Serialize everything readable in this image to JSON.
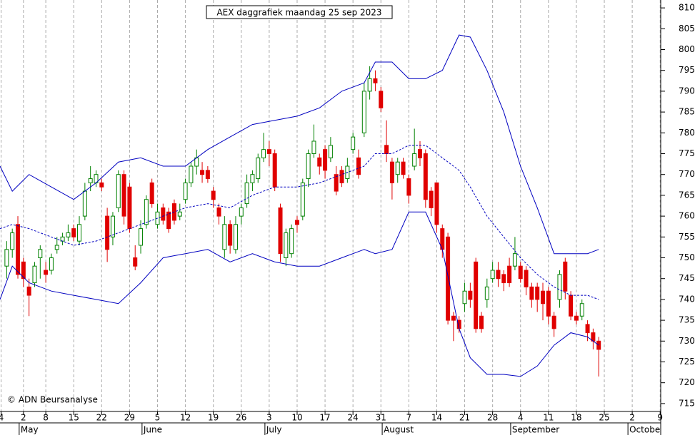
{
  "chart_data": {
    "type": "candlestick",
    "title": "AEX daggrafiek maandag 25 sep 2023",
    "credit": "© ADN Beursanalyse",
    "xlim": [
      -4.2,
      114.1
    ],
    "ylim": [
      713.1,
      811.9
    ],
    "yticks": [
      715,
      720,
      725,
      730,
      735,
      740,
      745,
      750,
      755,
      760,
      765,
      770,
      775,
      780,
      785,
      790,
      795,
      800,
      805,
      810
    ],
    "xticks": [
      {
        "value": -4,
        "label": "4"
      },
      {
        "value": 0,
        "label": "2"
      },
      {
        "value": 4,
        "label": "8"
      },
      {
        "value": 9,
        "label": "15"
      },
      {
        "value": 14,
        "label": "22"
      },
      {
        "value": 19,
        "label": "29"
      },
      {
        "value": 24,
        "label": "5"
      },
      {
        "value": 29,
        "label": "12"
      },
      {
        "value": 34,
        "label": "19"
      },
      {
        "value": 39,
        "label": "26"
      },
      {
        "value": 44,
        "label": "3"
      },
      {
        "value": 49,
        "label": "10"
      },
      {
        "value": 54,
        "label": "17"
      },
      {
        "value": 59,
        "label": "24"
      },
      {
        "value": 64,
        "label": "31"
      },
      {
        "value": 69,
        "label": "7"
      },
      {
        "value": 74,
        "label": "14"
      },
      {
        "value": 79,
        "label": "21"
      },
      {
        "value": 84,
        "label": "28"
      },
      {
        "value": 89,
        "label": "4"
      },
      {
        "value": 94,
        "label": "11"
      },
      {
        "value": 99,
        "label": "18"
      },
      {
        "value": 104,
        "label": "25"
      },
      {
        "value": 109,
        "label": "2"
      },
      {
        "value": 114,
        "label": "9"
      }
    ],
    "months": [
      {
        "value": 0,
        "label": "May"
      },
      {
        "value": 22,
        "label": "June"
      },
      {
        "value": 44,
        "label": "July"
      },
      {
        "value": 65,
        "label": "August"
      },
      {
        "value": 88,
        "label": "September"
      },
      {
        "value": 109,
        "label": "Octobe"
      }
    ],
    "up_color": "#008000",
    "down_color": "#e00000",
    "candles": {
      "x": [
        -3,
        -2,
        -1,
        0,
        1,
        2,
        3,
        4,
        5,
        6,
        7,
        8,
        9,
        10,
        11,
        12,
        13,
        14,
        15,
        16,
        17,
        18,
        19,
        20,
        21,
        22,
        23,
        24,
        25,
        26,
        27,
        28,
        29,
        30,
        31,
        32,
        33,
        34,
        35,
        36,
        37,
        38,
        39,
        40,
        41,
        42,
        43,
        44,
        45,
        46,
        47,
        48,
        49,
        50,
        51,
        52,
        53,
        54,
        55,
        56,
        57,
        58,
        59,
        60,
        61,
        62,
        63,
        64,
        65,
        66,
        67,
        68,
        69,
        70,
        71,
        72,
        73,
        74,
        75,
        76,
        77,
        78,
        79,
        80,
        81,
        82,
        83,
        84,
        85,
        86,
        87,
        88,
        89,
        90,
        91,
        92,
        93,
        94,
        95,
        96,
        97,
        98,
        99,
        100,
        101,
        102,
        103
      ],
      "open": [
        748,
        752,
        758,
        749,
        743,
        744,
        750,
        747,
        747,
        752,
        754,
        755,
        757,
        754,
        760,
        768,
        768,
        768,
        760,
        755,
        762,
        770,
        767,
        750,
        753,
        758,
        768,
        758,
        762,
        761,
        763,
        760,
        764,
        768,
        772,
        771,
        771,
        766,
        762,
        752,
        758,
        752,
        760,
        763,
        768,
        769,
        774,
        776,
        775,
        762,
        750,
        751,
        759,
        760,
        769,
        775,
        774,
        776,
        774,
        770,
        771,
        769,
        776,
        774,
        780,
        790,
        793,
        790,
        777,
        773,
        770,
        773,
        769,
        772,
        776,
        775,
        766,
        768,
        757,
        755,
        736,
        735,
        739,
        742,
        749,
        736,
        740,
        745,
        747,
        746,
        748,
        748,
        748,
        747,
        743,
        743,
        742,
        742,
        736,
        740,
        749,
        741,
        736,
        736,
        734,
        732,
        730
      ],
      "close": [
        752,
        756,
        746,
        745,
        741,
        748,
        752,
        746,
        750,
        753,
        755,
        756,
        755,
        758,
        766,
        769,
        770,
        767,
        752,
        760,
        770,
        760,
        757,
        748,
        757,
        764,
        763,
        761,
        759,
        757,
        759,
        761,
        768,
        772,
        774,
        770,
        769,
        764,
        760,
        758,
        753,
        758,
        762,
        768,
        770,
        774,
        776,
        775,
        767,
        751,
        756,
        757,
        758,
        768,
        775,
        778,
        772,
        771,
        777,
        766,
        768,
        772,
        779,
        770,
        790,
        793,
        792,
        786,
        775,
        768,
        773,
        770,
        765,
        775,
        774,
        764,
        762,
        758,
        752,
        735,
        735,
        733,
        742,
        740,
        733,
        733,
        743,
        747,
        745,
        744,
        744,
        751,
        745,
        743,
        740,
        740,
        739,
        736,
        733,
        746,
        742,
        736,
        735,
        739,
        732,
        730,
        728
      ],
      "high": [
        754,
        757,
        760,
        750,
        745,
        749,
        753,
        749,
        751,
        755,
        756,
        758,
        758,
        760,
        768,
        772,
        771,
        769,
        762,
        761,
        771,
        771,
        768,
        753,
        759,
        765,
        769,
        763,
        763,
        762,
        764,
        763,
        769,
        773,
        776,
        773,
        772,
        767,
        763,
        760,
        759,
        760,
        763,
        770,
        771,
        775,
        780,
        778,
        776,
        763,
        757,
        758,
        760,
        769,
        776,
        782,
        775,
        777,
        779,
        772,
        772,
        774,
        780,
        776,
        792,
        796,
        795,
        791,
        783,
        774,
        774,
        774,
        770,
        781,
        778,
        776,
        767,
        768,
        758,
        756,
        737,
        736,
        744,
        744,
        750,
        737,
        745,
        749,
        749,
        747,
        750,
        755,
        749,
        748,
        744,
        744,
        744,
        743,
        737,
        747,
        750,
        742,
        737,
        740,
        735,
        733,
        731
      ],
      "low": [
        745,
        750,
        745,
        743,
        736,
        743,
        745,
        744,
        746,
        751,
        753,
        754,
        754,
        753,
        759,
        766,
        767,
        766,
        749,
        753,
        761,
        758,
        756,
        747,
        751,
        757,
        762,
        757,
        758,
        756,
        758,
        759,
        763,
        767,
        770,
        768,
        768,
        762,
        758,
        750,
        751,
        751,
        758,
        762,
        766,
        768,
        773,
        772,
        766,
        749,
        748,
        750,
        756,
        759,
        767,
        774,
        770,
        769,
        773,
        765,
        767,
        768,
        775,
        769,
        779,
        788,
        790,
        785,
        773,
        764,
        768,
        769,
        763,
        771,
        772,
        762,
        760,
        756,
        750,
        734,
        730,
        732,
        737,
        738,
        732,
        732,
        738,
        744,
        743,
        742,
        743,
        747,
        744,
        741,
        738,
        737,
        735,
        734,
        731,
        738,
        740,
        735,
        734,
        735,
        730,
        728,
        721.5
      ]
    },
    "band_x": [
      -4.2,
      -2,
      1,
      5,
      9,
      13,
      17,
      21,
      25,
      29,
      33,
      37,
      41,
      45,
      49,
      53,
      57,
      61,
      63,
      66,
      69,
      72,
      75,
      78,
      80,
      83,
      86,
      89,
      92,
      95,
      98,
      101,
      103
    ],
    "bands": [
      {
        "color": "#0000c0",
        "dashed": false,
        "values": [
          772,
          766,
          770,
          767,
          764,
          768,
          773,
          774,
          772,
          772,
          776,
          779,
          782,
          783,
          784,
          786,
          790,
          792,
          797,
          797,
          793,
          793,
          795,
          803.5,
          803,
          795,
          785,
          772,
          762,
          751,
          751,
          751,
          752
        ]
      },
      {
        "color": "#0000c0",
        "dashed": true,
        "values": [
          757,
          758,
          757,
          755,
          753,
          754,
          756,
          758,
          760,
          762,
          763,
          762,
          765,
          767,
          767,
          768,
          770,
          772,
          775,
          775,
          777,
          777,
          774,
          771,
          767,
          760,
          755,
          750,
          746,
          743,
          741,
          741,
          740
        ]
      },
      {
        "color": "#0000c0",
        "dashed": false,
        "values": [
          740,
          748,
          744,
          742,
          741,
          740,
          739,
          744,
          750,
          751,
          752,
          749,
          751,
          749,
          748,
          748,
          750,
          752,
          751,
          752,
          761,
          761,
          752,
          733,
          726,
          722,
          722,
          721.5,
          724,
          729,
          732,
          731,
          729
        ]
      }
    ]
  }
}
